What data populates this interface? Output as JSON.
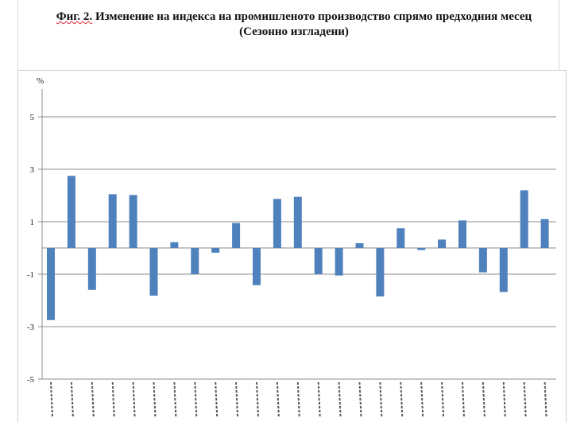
{
  "title": {
    "fig_label": "Фиг. 2.",
    "line1_rest": " Изменение на индекса на промишленото производство спрямо предходния месец",
    "line2": "(Сезонно изгладени)"
  },
  "colors": {
    "bar": "#4f81bd",
    "grid": "#8c8c8c"
  },
  "chart_data": {
    "type": "bar",
    "title": "Изменение на индекса на промишленото производство спрямо предходния месец (Сезонно изгладени)",
    "ylabel": "%",
    "ylim": [
      -5,
      6
    ],
    "yticks": [
      5,
      3,
      1,
      -1,
      -3,
      -5
    ],
    "grid": true,
    "categories": [
      "1",
      "2",
      "3",
      "4",
      "5",
      "6",
      "7",
      "8",
      "9",
      "10",
      "11",
      "12",
      "13",
      "14",
      "15",
      "16",
      "17",
      "18",
      "19",
      "20",
      "21",
      "22",
      "23",
      "24",
      "25"
    ],
    "values": [
      -2.75,
      2.75,
      -1.6,
      2.05,
      2.02,
      -1.82,
      0.22,
      -1.0,
      -0.18,
      0.95,
      -1.42,
      1.87,
      1.95,
      -1.0,
      -1.05,
      0.18,
      -1.85,
      0.75,
      -0.08,
      0.32,
      1.05,
      -0.93,
      -1.68,
      2.2,
      1.1
    ]
  }
}
